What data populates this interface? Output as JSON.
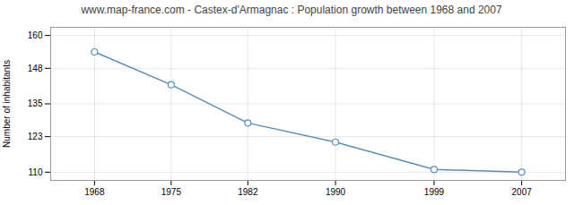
{
  "chart_data": {
    "type": "line",
    "title": "www.map-france.com - Castex-d'Armagnac : Population growth between 1968 and 2007",
    "ylabel": "Number of inhabitants",
    "x": [
      1968,
      1975,
      1982,
      1990,
      1999,
      2007
    ],
    "values": [
      154,
      142,
      128,
      121,
      111,
      110
    ],
    "xlim": [
      1964,
      2011
    ],
    "xticks": [
      1968,
      1975,
      1982,
      1990,
      1999,
      2007
    ],
    "ylim": [
      107,
      163
    ],
    "yticks": [
      110,
      123,
      135,
      148,
      160
    ],
    "grid": true,
    "color": "#5b8db8",
    "marker": "circle"
  }
}
